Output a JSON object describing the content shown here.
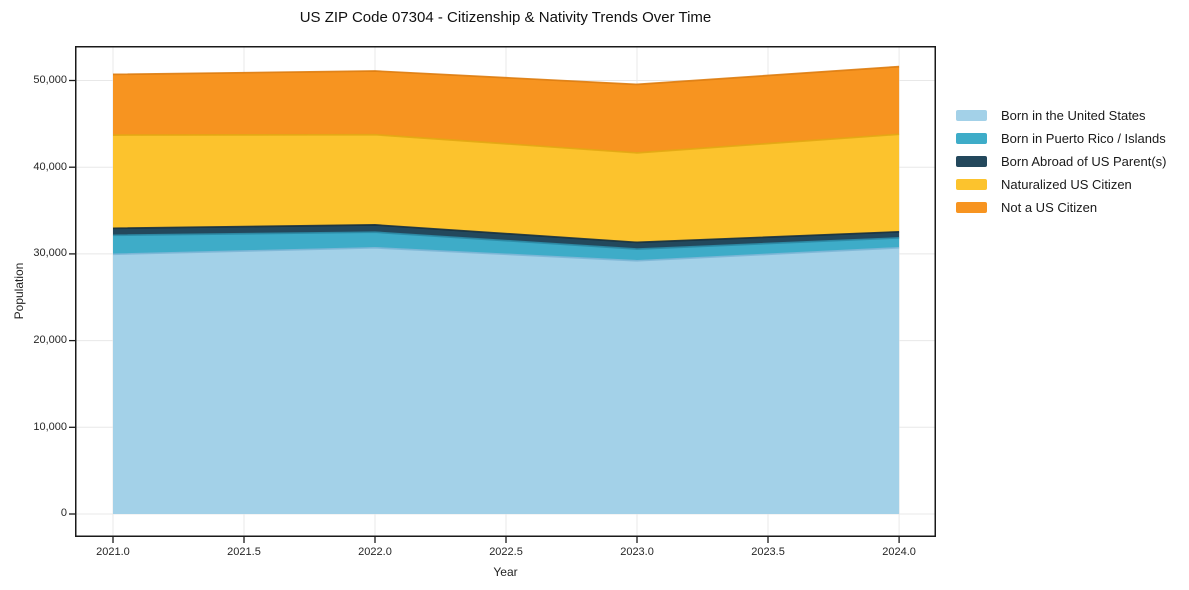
{
  "chart_data": {
    "type": "area",
    "stacked": true,
    "title": "US ZIP Code 07304 - Citizenship & Nativity Trends Over Time",
    "xlabel": "Year",
    "ylabel": "Population",
    "x": [
      2021,
      2022,
      2023,
      2024
    ],
    "series": [
      {
        "name": "Born in the United States",
        "color": "#a3d1e8",
        "edge_color": "#7db6d6",
        "values": [
          29950,
          30700,
          29200,
          30700
        ]
      },
      {
        "name": "Born in Puerto Rico / Islands",
        "color": "#3eacc8",
        "edge_color": "#2b8ba6",
        "values": [
          2200,
          1800,
          1350,
          1150
        ]
      },
      {
        "name": "Born Abroad of US Parent(s)",
        "color": "#23485c",
        "edge_color": "#152f3e",
        "values": [
          800,
          850,
          780,
          700
        ]
      },
      {
        "name": "Naturalized US Citizen",
        "color": "#fcc32d",
        "edge_color": "#e2a712",
        "values": [
          10750,
          10400,
          10320,
          11250
        ]
      },
      {
        "name": "Not a US Citizen",
        "color": "#f79420",
        "edge_color": "#dd7c10",
        "values": [
          7000,
          7350,
          7900,
          7800
        ]
      }
    ],
    "xlim": [
      2020.855,
      2024.141
    ],
    "ylim": [
      -2653,
      53979
    ],
    "xticks": {
      "values": [
        2021.0,
        2021.5,
        2022.0,
        2022.5,
        2023.0,
        2023.5,
        2024.0
      ],
      "labels": [
        "2021.0",
        "2021.5",
        "2022.0",
        "2022.5",
        "2023.0",
        "2023.5",
        "2024.0"
      ]
    },
    "yticks": {
      "values": [
        0,
        10000,
        20000,
        30000,
        40000,
        50000
      ],
      "labels": [
        "0",
        "10,000",
        "20,000",
        "30,000",
        "40,000",
        "50,000"
      ]
    },
    "grid": true,
    "grid_color": "#e8e8e8",
    "spine_color": "#1a1a1a",
    "legend_position": "right of plot"
  }
}
